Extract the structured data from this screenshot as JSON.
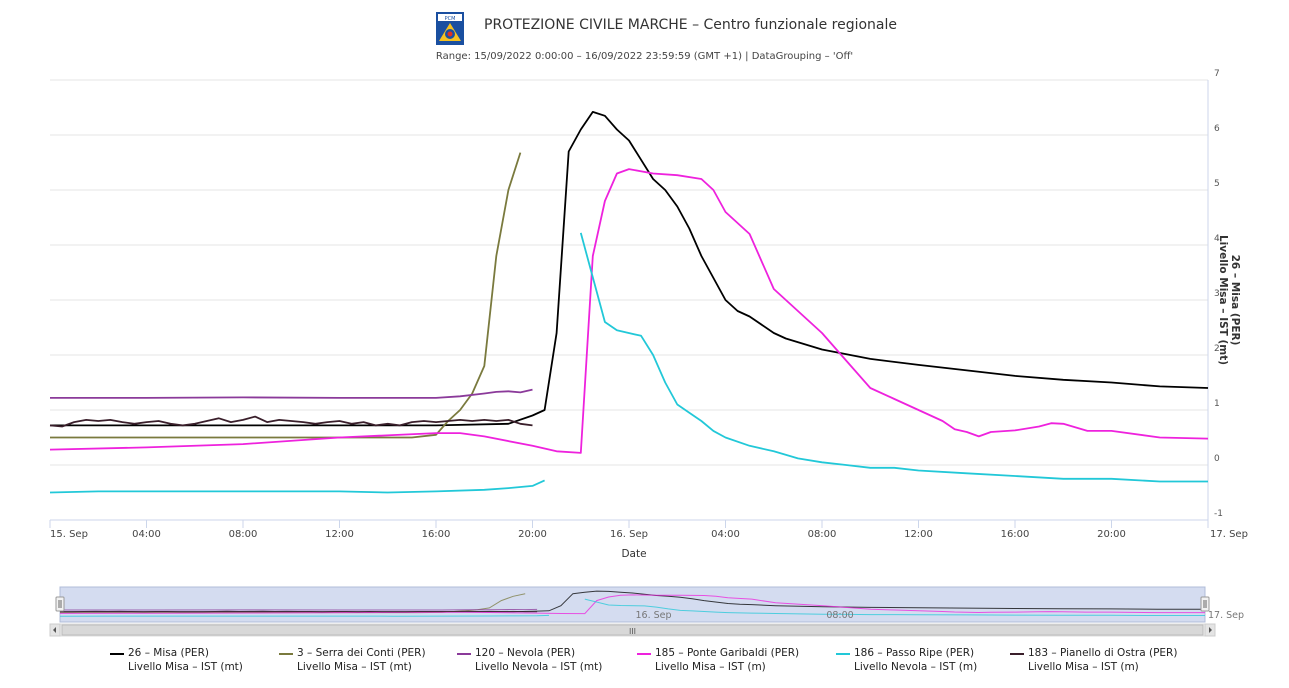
{
  "header": {
    "title": "PROTEZIONE CIVILE MARCHE – Centro funzionale regionale",
    "subtitle": "Range: 15/09/2022 0:00:00 – 16/09/2022 23:59:59 (GMT +1) | DataGrouping – 'Off'",
    "logo_text": "PCM"
  },
  "chart_data": {
    "type": "line",
    "title": "PROTEZIONE CIVILE MARCHE – Centro funzionale regionale",
    "subtitle": "Range: 15/09/2022 0:00:00 – 16/09/2022 23:59:59 (GMT +1) | DataGrouping – 'Off'",
    "xlabel": "Date",
    "ylabel": "26 – Misa (PER) Livello Misa – IST (mt)",
    "x_unit": "hours since 15. Sep 00:00",
    "xlim": [
      0,
      48
    ],
    "ylim": [
      -1,
      7
    ],
    "y_ticks": [
      -1,
      0,
      1,
      2,
      3,
      4,
      5,
      6,
      7
    ],
    "x_ticks": [
      {
        "x": 0,
        "label": "15. Sep"
      },
      {
        "x": 4,
        "label": "04:00"
      },
      {
        "x": 8,
        "label": "08:00"
      },
      {
        "x": 12,
        "label": "12:00"
      },
      {
        "x": 16,
        "label": "16:00"
      },
      {
        "x": 20,
        "label": "20:00"
      },
      {
        "x": 24,
        "label": "16. Sep"
      },
      {
        "x": 28,
        "label": "04:00"
      },
      {
        "x": 32,
        "label": "08:00"
      },
      {
        "x": 36,
        "label": "12:00"
      },
      {
        "x": 40,
        "label": "16:00"
      },
      {
        "x": 44,
        "label": "20:00"
      },
      {
        "x": 48,
        "label": "17. Sep"
      }
    ],
    "navigator_labels": [
      {
        "x": 24,
        "label": "16. Sep"
      },
      {
        "x": 32,
        "label": "08:00"
      },
      {
        "x": 48,
        "label": "17. Sep"
      }
    ],
    "grid": true,
    "legend_position": "bottom",
    "series": [
      {
        "name": "26 – Misa (PER)",
        "sub": "Livello Misa – IST (mt)",
        "color": "#000000",
        "points": [
          [
            0,
            0.72
          ],
          [
            4,
            0.72
          ],
          [
            8,
            0.72
          ],
          [
            12,
            0.72
          ],
          [
            16,
            0.72
          ],
          [
            19,
            0.75
          ],
          [
            20,
            0.9
          ],
          [
            20.5,
            1.0
          ],
          [
            21,
            2.4
          ],
          [
            21.5,
            5.7
          ],
          [
            22,
            6.1
          ],
          [
            22.5,
            6.42
          ],
          [
            23,
            6.35
          ],
          [
            23.5,
            6.1
          ],
          [
            24,
            5.9
          ],
          [
            24.5,
            5.55
          ],
          [
            25,
            5.2
          ],
          [
            25.5,
            5.0
          ],
          [
            26,
            4.7
          ],
          [
            26.5,
            4.3
          ],
          [
            27,
            3.8
          ],
          [
            28,
            3.0
          ],
          [
            28.5,
            2.8
          ],
          [
            29,
            2.7
          ],
          [
            30,
            2.4
          ],
          [
            30.5,
            2.3
          ],
          [
            32,
            2.1
          ],
          [
            34,
            1.93
          ],
          [
            36,
            1.82
          ],
          [
            38,
            1.72
          ],
          [
            40,
            1.62
          ],
          [
            42,
            1.55
          ],
          [
            44,
            1.5
          ],
          [
            46,
            1.43
          ],
          [
            48,
            1.4
          ]
        ]
      },
      {
        "name": "3 – Serra dei Conti (PER)",
        "sub": "Livello Misa – IST (mt)",
        "color": "#7a7a3e",
        "points": [
          [
            0,
            0.5
          ],
          [
            2,
            0.5
          ],
          [
            4,
            0.5
          ],
          [
            8,
            0.5
          ],
          [
            12,
            0.5
          ],
          [
            15,
            0.5
          ],
          [
            16,
            0.55
          ],
          [
            16.5,
            0.8
          ],
          [
            17,
            1.0
          ],
          [
            17.5,
            1.3
          ],
          [
            18,
            1.8
          ],
          [
            18.5,
            3.8
          ],
          [
            19,
            5.0
          ],
          [
            19.5,
            5.68
          ]
        ]
      },
      {
        "name": "120 – Nevola (PER)",
        "sub": "Livello Nevola – IST (mt)",
        "color": "#8b3a9a",
        "points": [
          [
            0,
            1.22
          ],
          [
            4,
            1.22
          ],
          [
            8,
            1.23
          ],
          [
            12,
            1.22
          ],
          [
            16,
            1.22
          ],
          [
            17,
            1.25
          ],
          [
            18,
            1.3
          ],
          [
            18.5,
            1.33
          ],
          [
            19,
            1.34
          ],
          [
            19.5,
            1.32
          ],
          [
            20,
            1.37
          ]
        ]
      },
      {
        "name": "185 – Ponte Garibaldi (PER)",
        "sub": "Livello Misa – IST (m)",
        "color": "#ee22dd",
        "points": [
          [
            0,
            0.28
          ],
          [
            4,
            0.32
          ],
          [
            8,
            0.38
          ],
          [
            12,
            0.5
          ],
          [
            16,
            0.58
          ],
          [
            17,
            0.58
          ],
          [
            18,
            0.52
          ],
          [
            20,
            0.35
          ],
          [
            21,
            0.25
          ],
          [
            22,
            0.22
          ],
          [
            22.5,
            3.8
          ],
          [
            23,
            4.8
          ],
          [
            23.5,
            5.3
          ],
          [
            24,
            5.38
          ],
          [
            25,
            5.3
          ],
          [
            26,
            5.27
          ],
          [
            27,
            5.2
          ],
          [
            27.5,
            5.0
          ],
          [
            28,
            4.6
          ],
          [
            29,
            4.2
          ],
          [
            30,
            3.2
          ],
          [
            31,
            2.8
          ],
          [
            32,
            2.4
          ],
          [
            33,
            1.9
          ],
          [
            34,
            1.4
          ],
          [
            35,
            1.2
          ],
          [
            36,
            1.0
          ],
          [
            37,
            0.8
          ],
          [
            37.5,
            0.65
          ],
          [
            38,
            0.6
          ],
          [
            38.5,
            0.52
          ],
          [
            39,
            0.6
          ],
          [
            40,
            0.63
          ],
          [
            41,
            0.7
          ],
          [
            41.5,
            0.76
          ],
          [
            42,
            0.75
          ],
          [
            43,
            0.62
          ],
          [
            44,
            0.62
          ],
          [
            46,
            0.5
          ],
          [
            48,
            0.48
          ]
        ]
      },
      {
        "name": "186 – Passo Ripe (PER)",
        "sub": "Livello Nevola – IST (m)",
        "color": "#22c8d8",
        "points": [
          [
            0,
            -0.5
          ],
          [
            2,
            -0.48
          ],
          [
            4,
            -0.48
          ],
          [
            8,
            -0.48
          ],
          [
            12,
            -0.48
          ],
          [
            14,
            -0.5
          ],
          [
            16,
            -0.48
          ],
          [
            18,
            -0.45
          ],
          [
            19,
            -0.42
          ],
          [
            20,
            -0.38
          ],
          [
            20.5,
            -0.28
          ]
        ]
      },
      {
        "name": "186 – Passo Ripe (PER)",
        "sub": "Livello Nevola – IST (m)",
        "color": "#22c8d8",
        "segment": 2,
        "points": [
          [
            22,
            4.22
          ],
          [
            23,
            2.6
          ],
          [
            23.5,
            2.45
          ],
          [
            24.5,
            2.35
          ],
          [
            25,
            2.0
          ],
          [
            25.5,
            1.5
          ],
          [
            26,
            1.1
          ],
          [
            26.5,
            0.95
          ],
          [
            27,
            0.8
          ],
          [
            27.5,
            0.62
          ],
          [
            28,
            0.5
          ],
          [
            29,
            0.35
          ],
          [
            30,
            0.25
          ],
          [
            31,
            0.12
          ],
          [
            32,
            0.05
          ],
          [
            33,
            0.0
          ],
          [
            34,
            -0.05
          ],
          [
            35,
            -0.05
          ],
          [
            36,
            -0.1
          ],
          [
            38,
            -0.15
          ],
          [
            40,
            -0.2
          ],
          [
            42,
            -0.25
          ],
          [
            44,
            -0.25
          ],
          [
            46,
            -0.3
          ],
          [
            48,
            -0.3
          ]
        ]
      },
      {
        "name": "183 – Pianello di Ostra (PER)",
        "sub": "Livello Misa – IST (m)",
        "color": "#3a1f2b",
        "points": [
          [
            0,
            0.72
          ],
          [
            0.5,
            0.7
          ],
          [
            1,
            0.78
          ],
          [
            1.5,
            0.82
          ],
          [
            2,
            0.8
          ],
          [
            2.5,
            0.82
          ],
          [
            3,
            0.78
          ],
          [
            3.5,
            0.75
          ],
          [
            4,
            0.78
          ],
          [
            4.5,
            0.8
          ],
          [
            5,
            0.75
          ],
          [
            5.5,
            0.72
          ],
          [
            6,
            0.75
          ],
          [
            6.5,
            0.8
          ],
          [
            7,
            0.85
          ],
          [
            7.5,
            0.78
          ],
          [
            8,
            0.82
          ],
          [
            8.5,
            0.88
          ],
          [
            9,
            0.78
          ],
          [
            9.5,
            0.82
          ],
          [
            10,
            0.8
          ],
          [
            10.5,
            0.78
          ],
          [
            11,
            0.75
          ],
          [
            11.5,
            0.78
          ],
          [
            12,
            0.8
          ],
          [
            12.5,
            0.75
          ],
          [
            13,
            0.78
          ],
          [
            13.5,
            0.72
          ],
          [
            14,
            0.75
          ],
          [
            14.5,
            0.72
          ],
          [
            15,
            0.78
          ],
          [
            15.5,
            0.8
          ],
          [
            16,
            0.78
          ],
          [
            16.5,
            0.8
          ],
          [
            17,
            0.82
          ],
          [
            17.5,
            0.8
          ],
          [
            18,
            0.82
          ],
          [
            18.5,
            0.8
          ],
          [
            19,
            0.82
          ],
          [
            19.5,
            0.75
          ],
          [
            20,
            0.72
          ]
        ]
      }
    ],
    "legend": [
      {
        "name": "26 – Misa (PER)",
        "sub": "Livello Misa – IST (mt)",
        "color": "#000000"
      },
      {
        "name": "3 – Serra dei Conti (PER)",
        "sub": "Livello Misa – IST (mt)",
        "color": "#7a7a3e"
      },
      {
        "name": "120 – Nevola (PER)",
        "sub": "Livello Nevola – IST (mt)",
        "color": "#8b3a9a"
      },
      {
        "name": "185 – Ponte Garibaldi (PER)",
        "sub": "Livello Misa – IST (m)",
        "color": "#ee22dd"
      },
      {
        "name": "186 – Passo Ripe (PER)",
        "sub": "Livello Nevola – IST (m)",
        "color": "#22c8d8"
      },
      {
        "name": "183 – Pianello di Ostra (PER)",
        "sub": "Livello Misa – IST (m)",
        "color": "#3a1f2b"
      }
    ]
  },
  "navigator": {
    "scroll_center_label": "III"
  }
}
